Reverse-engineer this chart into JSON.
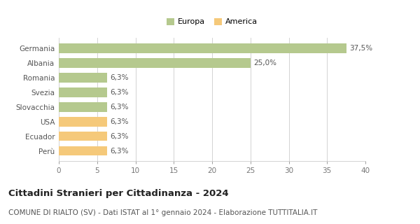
{
  "categories": [
    "Perù",
    "Ecuador",
    "USA",
    "Slovacchia",
    "Svezia",
    "Romania",
    "Albania",
    "Germania"
  ],
  "values": [
    6.3,
    6.3,
    6.3,
    6.3,
    6.3,
    6.3,
    25.0,
    37.5
  ],
  "colors": [
    "#f5c97a",
    "#f5c97a",
    "#f5c97a",
    "#b5c98e",
    "#b5c98e",
    "#b5c98e",
    "#b5c98e",
    "#b5c98e"
  ],
  "labels": [
    "6,3%",
    "6,3%",
    "6,3%",
    "6,3%",
    "6,3%",
    "6,3%",
    "25,0%",
    "37,5%"
  ],
  "legend": [
    {
      "label": "Europa",
      "color": "#b5c98e"
    },
    {
      "label": "America",
      "color": "#f5c97a"
    }
  ],
  "xlim": [
    0,
    40
  ],
  "xticks": [
    0,
    5,
    10,
    15,
    20,
    25,
    30,
    35,
    40
  ],
  "title": "Cittadini Stranieri per Cittadinanza - 2024",
  "subtitle": "COMUNE DI RIALTO (SV) - Dati ISTAT al 1° gennaio 2024 - Elaborazione TUTTITALIA.IT",
  "title_fontsize": 9.5,
  "subtitle_fontsize": 7.5,
  "label_fontsize": 7.5,
  "tick_fontsize": 7.5,
  "background_color": "#ffffff",
  "grid_color": "#cccccc"
}
